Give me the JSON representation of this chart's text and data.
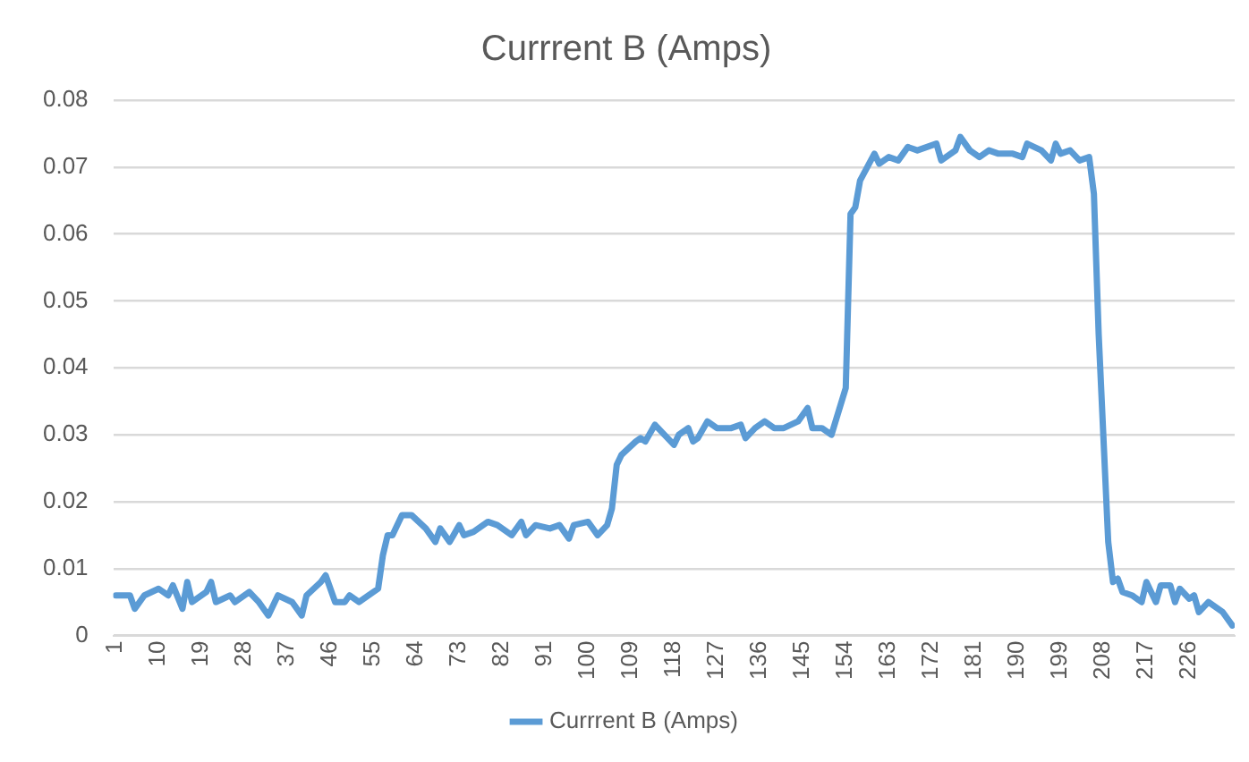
{
  "chart_data": {
    "type": "line",
    "title": "Currrent B (Amps)",
    "legend": "bottom",
    "grid": "y",
    "marker": "none",
    "line_style": "solid",
    "xlim": [
      0.5,
      235.5
    ],
    "xticks": [
      1,
      10,
      19,
      28,
      37,
      46,
      55,
      64,
      73,
      82,
      91,
      100,
      109,
      118,
      127,
      136,
      145,
      154,
      163,
      172,
      181,
      190,
      199,
      208,
      217,
      226
    ],
    "ylim": [
      0,
      0.08
    ],
    "yticks": [
      0,
      0.01,
      0.02,
      0.03,
      0.04,
      0.05,
      0.06,
      0.07,
      0.08
    ],
    "series": [
      {
        "name": "Currrent B (Amps)",
        "color": "#5b9bd5",
        "x": [
          1,
          4,
          5,
          7,
          10,
          12,
          13,
          15,
          16,
          17,
          20,
          21,
          22,
          25,
          26,
          29,
          31,
          33,
          35,
          38,
          40,
          41,
          44,
          45,
          47,
          49,
          50,
          52,
          54,
          56,
          57,
          58,
          59,
          61,
          63,
          66,
          68,
          69,
          71,
          73,
          74,
          76,
          79,
          81,
          84,
          86,
          87,
          89,
          92,
          94,
          96,
          97,
          100,
          102,
          104,
          105,
          106,
          107,
          110,
          111,
          112,
          114,
          116,
          118,
          119,
          121,
          122,
          123,
          125,
          127,
          130,
          132,
          133,
          135,
          137,
          139,
          141,
          144,
          146,
          147,
          149,
          151,
          154,
          155,
          156,
          157,
          160,
          161,
          163,
          165,
          167,
          169,
          171,
          173,
          174,
          177,
          178,
          180,
          182,
          184,
          186,
          189,
          191,
          192,
          195,
          197,
          198,
          199,
          201,
          203,
          205,
          206,
          207,
          209,
          210,
          211,
          212,
          214,
          216,
          217,
          219,
          220,
          222,
          223,
          224,
          226,
          227,
          228,
          230,
          231,
          233,
          235
        ],
        "values": [
          0.006,
          0.006,
          0.004,
          0.006,
          0.007,
          0.006,
          0.0075,
          0.004,
          0.008,
          0.005,
          0.0065,
          0.008,
          0.005,
          0.006,
          0.005,
          0.0065,
          0.005,
          0.003,
          0.006,
          0.005,
          0.003,
          0.006,
          0.008,
          0.009,
          0.005,
          0.005,
          0.006,
          0.005,
          0.006,
          0.007,
          0.012,
          0.015,
          0.015,
          0.018,
          0.018,
          0.016,
          0.014,
          0.016,
          0.014,
          0.0165,
          0.015,
          0.0155,
          0.017,
          0.0165,
          0.015,
          0.017,
          0.015,
          0.0165,
          0.016,
          0.0165,
          0.0145,
          0.0165,
          0.017,
          0.015,
          0.0165,
          0.019,
          0.0255,
          0.027,
          0.029,
          0.0295,
          0.029,
          0.0315,
          0.03,
          0.0285,
          0.03,
          0.031,
          0.029,
          0.0295,
          0.032,
          0.031,
          0.031,
          0.0315,
          0.0295,
          0.031,
          0.032,
          0.031,
          0.031,
          0.032,
          0.034,
          0.031,
          0.031,
          0.03,
          0.037,
          0.063,
          0.064,
          0.068,
          0.072,
          0.0705,
          0.0715,
          0.071,
          0.073,
          0.0725,
          0.073,
          0.0735,
          0.071,
          0.0725,
          0.0745,
          0.0725,
          0.0715,
          0.0725,
          0.072,
          0.072,
          0.0715,
          0.0735,
          0.0725,
          0.071,
          0.0735,
          0.072,
          0.0725,
          0.071,
          0.0715,
          0.066,
          0.045,
          0.014,
          0.008,
          0.0085,
          0.0065,
          0.006,
          0.005,
          0.008,
          0.005,
          0.0075,
          0.0075,
          0.005,
          0.007,
          0.0055,
          0.006,
          0.0035,
          0.005,
          0.0045,
          0.0035,
          0.0015
        ]
      }
    ]
  }
}
